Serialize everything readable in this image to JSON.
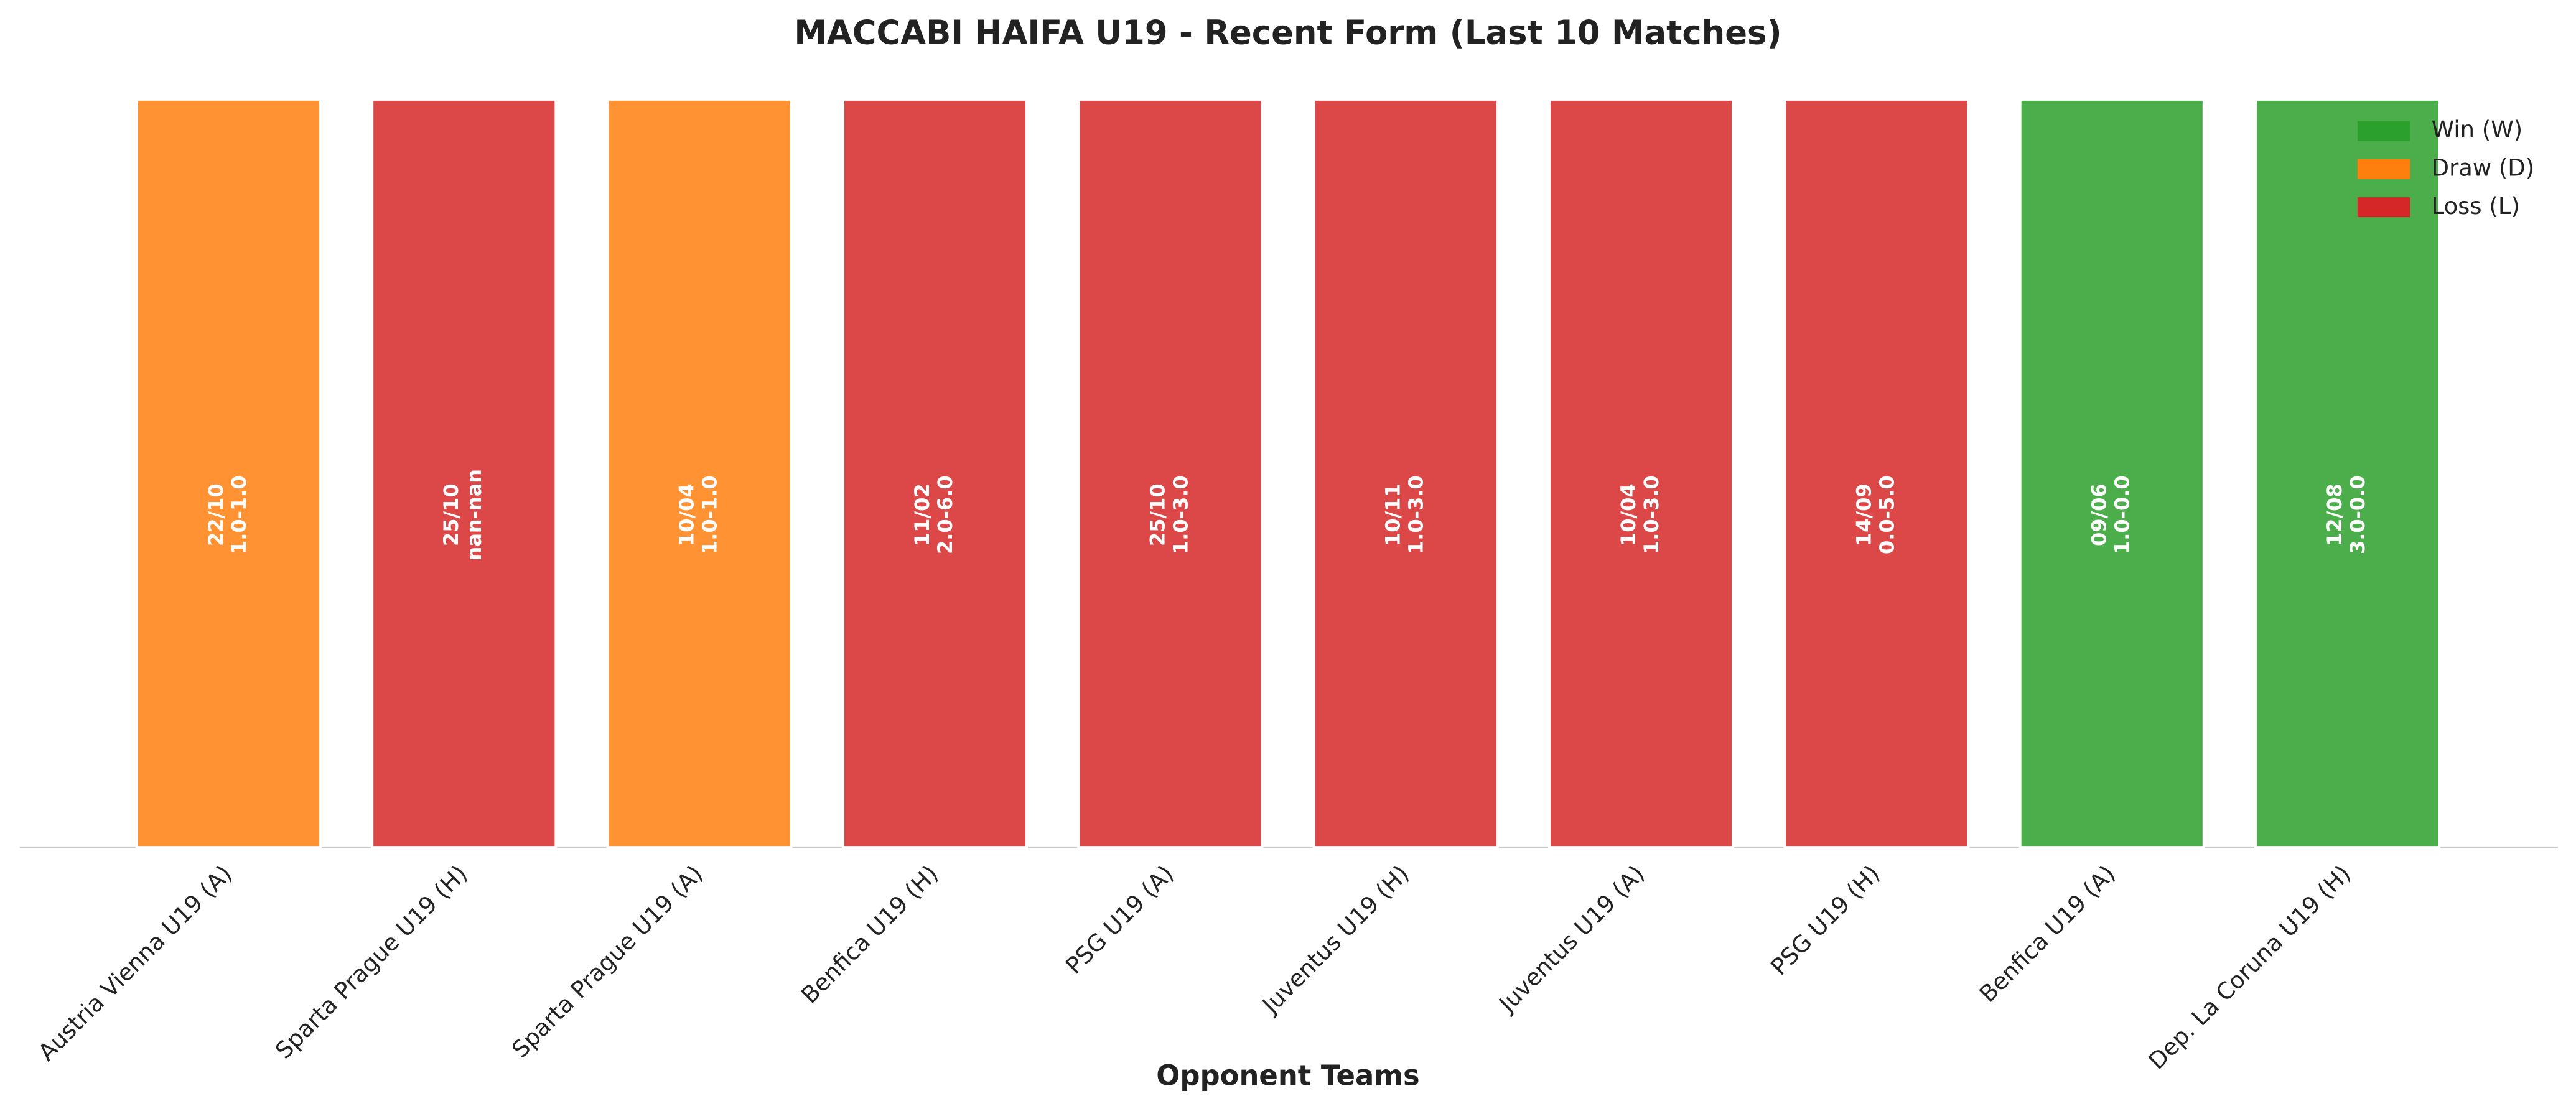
{
  "chart_data": {
    "type": "bar",
    "title": "MACCABI HAIFA U19 - Recent Form (Last 10 Matches)",
    "x_label": "Opponent Teams",
    "categories": [
      "Austria Vienna U19 (A)",
      "Sparta Prague U19 (H)",
      "Sparta Prague U19 (A)",
      "Benfica U19 (H)",
      "PSG U19 (A)",
      "Juventus U19 (H)",
      "Juventus U19 (A)",
      "PSG U19 (H)",
      "Benfica U19 (A)",
      "Dep. La Coruna U19 (H)"
    ],
    "values": [
      1,
      1,
      1,
      1,
      1,
      1,
      1,
      1,
      1,
      1
    ],
    "dates": [
      "22/10",
      "25/10",
      "10/04",
      "11/02",
      "25/10",
      "10/11",
      "10/04",
      "14/09",
      "09/06",
      "12/08"
    ],
    "scores": [
      "1.0-1.0",
      "nan-nan",
      "1.0-1.0",
      "2.0-6.0",
      "1.0-3.0",
      "1.0-3.0",
      "1.0-3.0",
      "0.0-5.0",
      "1.0-0.0",
      "3.0-0.0"
    ],
    "colors": [
      "#ff7f0e",
      "#d62728",
      "#ff7f0e",
      "#d62728",
      "#d62728",
      "#d62728",
      "#d62728",
      "#d62728",
      "#2ca02c",
      "#2ca02c"
    ],
    "ylim": [
      0,
      1
    ],
    "legend": [
      {
        "name": "Win (W)",
        "color": "#2ca02c"
      },
      {
        "name": "Draw (D)",
        "color": "#ff7f0e"
      },
      {
        "name": "Loss (L)",
        "color": "#d62728"
      }
    ],
    "legend_position": "upper right"
  }
}
